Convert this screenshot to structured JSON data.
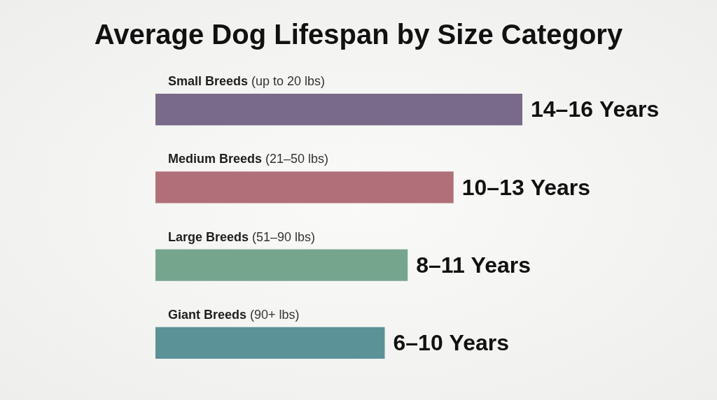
{
  "chart_data": {
    "type": "bar",
    "title": "Average Dog Lifespan by Size Category",
    "orientation": "horizontal",
    "categories": [
      "Small Breeds (up to 20 lbs)",
      "Medium Breeds (21–50 lbs)",
      "Large Breeds (51–90 lbs)",
      "Giant Breeds (90+ lbs)"
    ],
    "values": [
      16,
      13,
      11,
      10
    ],
    "value_labels": [
      "14–16 Years",
      "10–13 Years",
      "8–11 Years",
      "6–10 Years"
    ],
    "colors": [
      "#7a6a8a",
      "#b0707a",
      "#76a58e",
      "#5a9298"
    ],
    "xlim": [
      0,
      16
    ],
    "grid": false,
    "tick_labels": false,
    "data_labels": true
  }
}
